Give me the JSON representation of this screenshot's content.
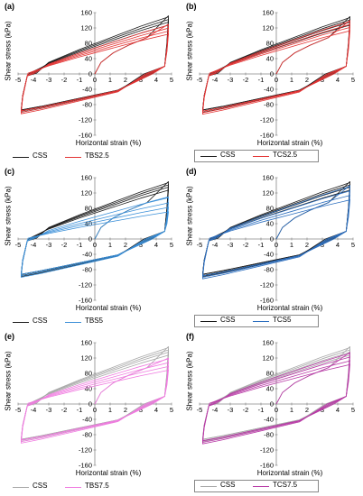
{
  "xlabel": "Horizontal strain (%)",
  "ylabel": "Shear stress (kPa)",
  "chart_data": [
    {
      "type": "line",
      "label": "(a)",
      "xlim": [
        -5,
        5
      ],
      "ylim": [
        -160,
        160
      ],
      "xticks": [
        "-5",
        "-4",
        "-3",
        "-2",
        "-1",
        "0",
        "1",
        "2",
        "3",
        "4",
        "5"
      ],
      "yticks": [
        "160",
        "120",
        "80",
        "40",
        "0",
        "-40",
        "-80",
        "-120",
        "-160"
      ],
      "legend_boxed": false,
      "series": [
        {
          "name": "CSS",
          "color": "#1a1a1a",
          "peaks": [
            152,
            145,
            138,
            130
          ],
          "bottoms": [
            -100,
            -97,
            -94
          ]
        },
        {
          "name": "TBS2.5",
          "color": "#e33333",
          "peaks": [
            130,
            122,
            114,
            106
          ],
          "bottoms": [
            -104,
            -100,
            -96
          ]
        }
      ]
    },
    {
      "type": "line",
      "label": "(b)",
      "xlim": [
        -5,
        5
      ],
      "ylim": [
        -160,
        160
      ],
      "xticks": [
        "-5",
        "-4",
        "-3",
        "-2",
        "-1",
        "0",
        "1",
        "2",
        "3",
        "4",
        "5"
      ],
      "yticks": [
        "160",
        "120",
        "80",
        "40",
        "0",
        "-40",
        "-80",
        "-120",
        "-160"
      ],
      "legend_boxed": true,
      "series": [
        {
          "name": "CSS",
          "color": "#1a1a1a",
          "peaks": [
            150,
            144,
            138,
            130
          ],
          "bottoms": [
            -100,
            -97,
            -94
          ]
        },
        {
          "name": "TCS2.5",
          "color": "#e33333",
          "peaks": [
            140,
            132,
            124,
            115
          ],
          "bottoms": [
            -105,
            -101,
            -97
          ]
        }
      ]
    },
    {
      "type": "line",
      "label": "(c)",
      "xlim": [
        -5,
        5
      ],
      "ylim": [
        -160,
        160
      ],
      "xticks": [
        "-5",
        "-4",
        "-3",
        "-2",
        "-1",
        "0",
        "1",
        "2",
        "3",
        "4",
        "5"
      ],
      "yticks": [
        "160",
        "120",
        "80",
        "40",
        "0",
        "-40",
        "-80",
        "-120",
        "-160"
      ],
      "legend_boxed": false,
      "series": [
        {
          "name": "CSS",
          "color": "#1a1a1a",
          "peaks": [
            150,
            144,
            138,
            130
          ],
          "bottoms": [
            -98,
            -95,
            -92
          ]
        },
        {
          "name": "TBS5",
          "color": "#3a8fd8",
          "peaks": [
            110,
            96,
            84,
            72
          ],
          "bottoms": [
            -100,
            -96,
            -92
          ]
        }
      ]
    },
    {
      "type": "line",
      "label": "(d)",
      "xlim": [
        -5,
        5
      ],
      "ylim": [
        -160,
        160
      ],
      "xticks": [
        "-5",
        "-4",
        "-3",
        "-2",
        "-1",
        "0",
        "1",
        "2",
        "3",
        "4",
        "5"
      ],
      "yticks": [
        "160",
        "120",
        "80",
        "40",
        "0",
        "-40",
        "-80",
        "-120",
        "-160"
      ],
      "legend_boxed": true,
      "series": [
        {
          "name": "CSS",
          "color": "#1a1a1a",
          "peaks": [
            150,
            144,
            138,
            130
          ],
          "bottoms": [
            -98,
            -95,
            -92
          ]
        },
        {
          "name": "TCS5",
          "color": "#2d6fbf",
          "peaks": [
            140,
            128,
            116,
            104
          ],
          "bottoms": [
            -104,
            -100,
            -96
          ]
        }
      ]
    },
    {
      "type": "line",
      "label": "(e)",
      "xlim": [
        -5,
        5
      ],
      "ylim": [
        -160,
        160
      ],
      "xticks": [
        "-5",
        "-4",
        "-3",
        "-2",
        "-1",
        "0",
        "1",
        "2",
        "3",
        "4",
        "5"
      ],
      "yticks": [
        "160",
        "120",
        "80",
        "40",
        "0",
        "-40",
        "-80",
        "-120",
        "-160"
      ],
      "legend_boxed": false,
      "series": [
        {
          "name": "CSS",
          "color": "#a8a8a8",
          "peaks": [
            150,
            144,
            138,
            130
          ],
          "bottoms": [
            -98,
            -95,
            -92
          ]
        },
        {
          "name": "TBS7.5",
          "color": "#f07ae0",
          "peaks": [
            120,
            110,
            100,
            90
          ],
          "bottoms": [
            -102,
            -98,
            -94
          ]
        }
      ]
    },
    {
      "type": "line",
      "label": "(f)",
      "xlim": [
        -5,
        5
      ],
      "ylim": [
        -160,
        160
      ],
      "xticks": [
        "-5",
        "-4",
        "-3",
        "-2",
        "-1",
        "0",
        "1",
        "2",
        "3",
        "4",
        "5"
      ],
      "yticks": [
        "160",
        "120",
        "80",
        "40",
        "0",
        "-40",
        "-80",
        "-120",
        "-160"
      ],
      "legend_boxed": true,
      "series": [
        {
          "name": "CSS",
          "color": "#a8a8a8",
          "peaks": [
            150,
            144,
            138,
            130
          ],
          "bottoms": [
            -98,
            -95,
            -92
          ]
        },
        {
          "name": "TCS7.5",
          "color": "#b83aa6",
          "peaks": [
            135,
            125,
            115,
            105
          ],
          "bottoms": [
            -104,
            -100,
            -96
          ]
        }
      ]
    }
  ]
}
